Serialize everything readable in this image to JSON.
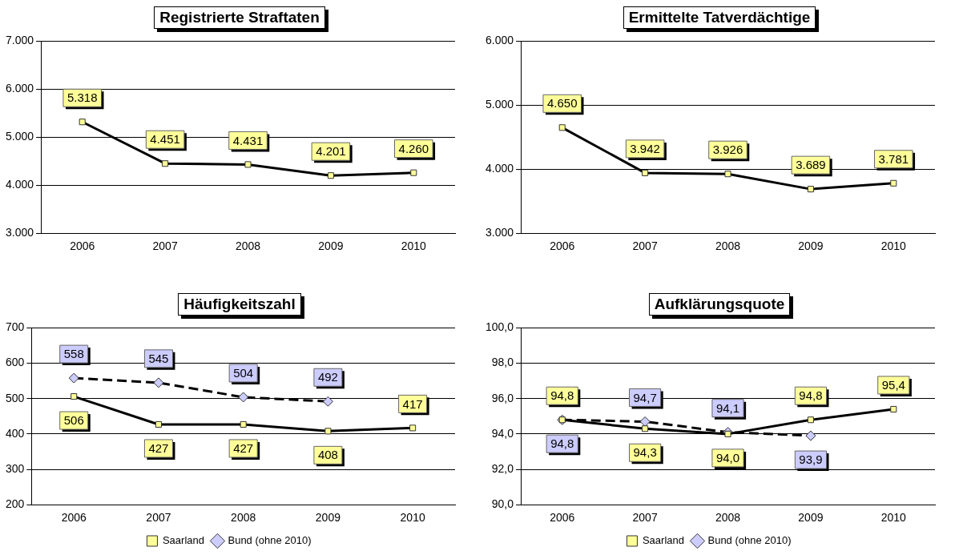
{
  "chart_data": [
    {
      "type": "line",
      "title": "Registrierte Straftaten",
      "categories": [
        "2006",
        "2007",
        "2008",
        "2009",
        "2010"
      ],
      "series": [
        {
          "color": "#ffff99",
          "marker": "square",
          "line_style": "solid",
          "values": [
            5318,
            4451,
            4431,
            4201,
            4260
          ],
          "value_labels": [
            "5.318",
            "4.451",
            "4.431",
            "4.201",
            "4.260"
          ]
        }
      ],
      "ylim": [
        3000,
        7000
      ],
      "yticks": [
        {
          "value": 3000,
          "label": "3.000"
        },
        {
          "value": 4000,
          "label": "4.000"
        },
        {
          "value": 5000,
          "label": "5.000"
        },
        {
          "value": 6000,
          "label": "6.000"
        },
        {
          "value": 7000,
          "label": "7.000"
        }
      ],
      "grid": "y",
      "legend": false
    },
    {
      "type": "line",
      "title": "Ermittelte Tatverdächtige",
      "categories": [
        "2006",
        "2007",
        "2008",
        "2009",
        "2010"
      ],
      "series": [
        {
          "color": "#ffff99",
          "marker": "square",
          "line_style": "solid",
          "values": [
            4650,
            3942,
            3926,
            3689,
            3781
          ],
          "value_labels": [
            "4.650",
            "3.942",
            "3.926",
            "3.689",
            "3.781"
          ]
        }
      ],
      "ylim": [
        3000,
        6000
      ],
      "yticks": [
        {
          "value": 3000,
          "label": "3.000"
        },
        {
          "value": 4000,
          "label": "4.000"
        },
        {
          "value": 5000,
          "label": "5.000"
        },
        {
          "value": 6000,
          "label": "6.000"
        }
      ],
      "grid": "y",
      "legend": false
    },
    {
      "type": "line",
      "title": "Häufigkeitszahl",
      "categories": [
        "2006",
        "2007",
        "2008",
        "2009",
        "2010"
      ],
      "series": [
        {
          "name": "Saarland",
          "color": "#ffff99",
          "marker": "square",
          "line_style": "solid",
          "values": [
            506,
            427,
            427,
            408,
            417
          ],
          "value_labels": [
            "506",
            "427",
            "427",
            "408",
            "417"
          ]
        },
        {
          "name": "Bund (ohne 2010)",
          "color": "#ccccff",
          "marker": "diamond",
          "line_style": "dashed",
          "values": [
            558,
            545,
            504,
            492,
            null
          ],
          "value_labels": [
            "558",
            "545",
            "504",
            "492",
            null
          ]
        }
      ],
      "ylim": [
        200,
        700
      ],
      "yticks": [
        200,
        300,
        400,
        500,
        600,
        700
      ],
      "grid": "y",
      "legend": "bottom"
    },
    {
      "type": "line",
      "title": "Aufklärungsquote",
      "categories": [
        "2006",
        "2007",
        "2008",
        "2009",
        "2010"
      ],
      "series": [
        {
          "name": "Saarland",
          "color": "#ffff99",
          "marker": "square",
          "line_style": "solid",
          "values": [
            94.8,
            94.3,
            94.0,
            94.8,
            95.4
          ],
          "value_labels": [
            "94,8",
            "94,3",
            "94,0",
            "94,8",
            "95,4"
          ]
        },
        {
          "name": "Bund (ohne 2010)",
          "color": "#ccccff",
          "marker": "diamond",
          "line_style": "dashed",
          "values": [
            94.8,
            94.7,
            94.1,
            93.9,
            null
          ],
          "value_labels": [
            "94,8",
            "94,7",
            "94,1",
            "93,9",
            null
          ]
        }
      ],
      "ylim": [
        90,
        100
      ],
      "yticks": [
        {
          "value": 90,
          "label": "90,0"
        },
        {
          "value": 92,
          "label": "92,0"
        },
        {
          "value": 94,
          "label": "94,0"
        },
        {
          "value": 96,
          "label": "96,0"
        },
        {
          "value": 98,
          "label": "98,0"
        },
        {
          "value": 100,
          "label": "100,0"
        }
      ],
      "grid": "y",
      "legend": "bottom"
    }
  ]
}
